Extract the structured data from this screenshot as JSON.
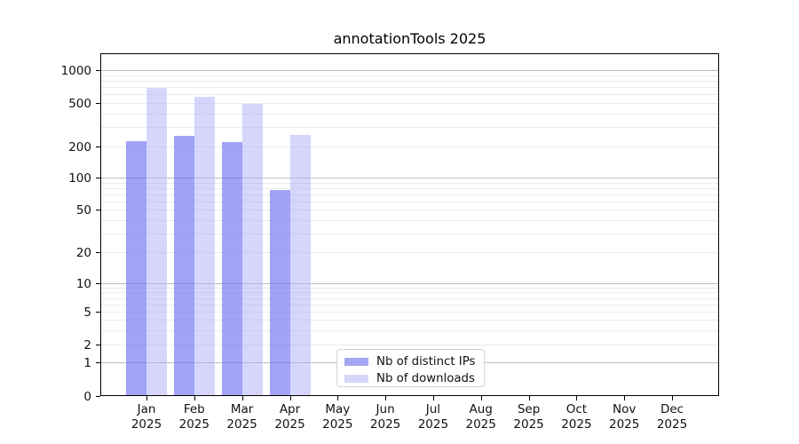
{
  "figure": {
    "title": "annotationTools 2025"
  },
  "chart_data": {
    "type": "bar",
    "title": "annotationTools 2025",
    "categories": [
      "Jan 2025",
      "Feb 2025",
      "Mar 2025",
      "Apr 2025",
      "May 2025",
      "Jun 2025",
      "Jul 2025",
      "Aug 2025",
      "Sep 2025",
      "Oct 2025",
      "Nov 2025",
      "Dec 2025"
    ],
    "series": [
      {
        "name": "Nb of distinct IPs",
        "values": [
          225,
          250,
          220,
          76,
          0,
          0,
          0,
          0,
          0,
          0,
          0,
          0
        ],
        "color": "rgba(107,107,245,0.63)",
        "legend_color": "#a6a6f4"
      },
      {
        "name": "Nb of downloads",
        "values": [
          690,
          570,
          490,
          255,
          0,
          0,
          0,
          0,
          0,
          0,
          0,
          0
        ],
        "color": "rgba(176,176,250,0.52)",
        "legend_color": "#d6d6f9"
      }
    ],
    "xlabel": "",
    "ylabel": "",
    "yscale": "symlog",
    "yticks": [
      0,
      1,
      2,
      5,
      10,
      20,
      50,
      100,
      200,
      500,
      1000
    ],
    "ylim": [
      0,
      1300
    ],
    "grid": true,
    "legend_position": "lower center"
  }
}
